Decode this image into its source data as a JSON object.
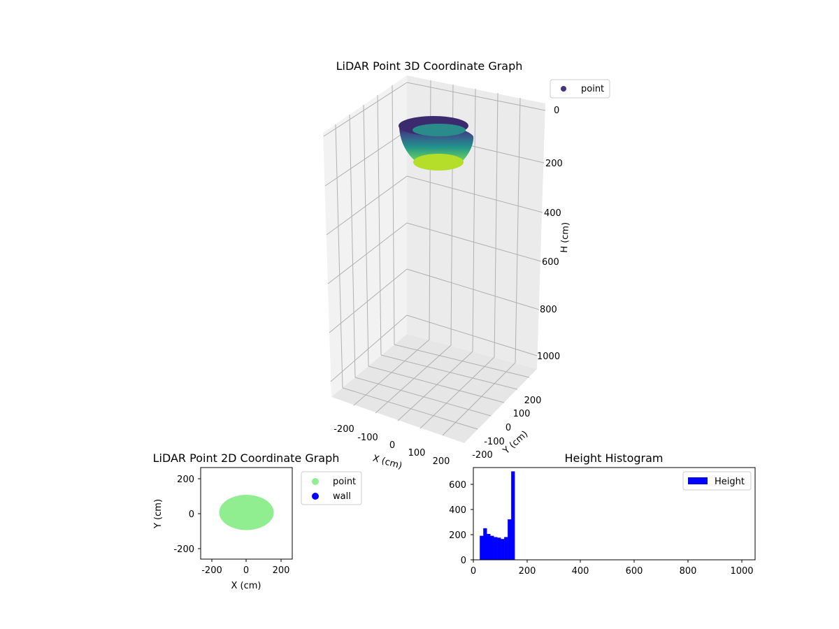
{
  "chart_data": [
    {
      "id": "lidar3d",
      "type": "scatter",
      "title": "LiDAR Point 3D Coordinate Graph",
      "xlabel": "X (cm)",
      "ylabel": "Y (cm)",
      "zlabel": "H (cm)",
      "xticks": [
        "-200",
        "-100",
        "0",
        "100",
        "200"
      ],
      "yticks": [
        "-200",
        "-100",
        "0",
        "100",
        "200"
      ],
      "zticks": [
        "0",
        "200",
        "400",
        "600",
        "800",
        "1000"
      ],
      "xlim": [
        -250,
        250
      ],
      "ylim": [
        -250,
        250
      ],
      "zlim": [
        0,
        1000
      ],
      "zinverted": true,
      "colormap": "viridis",
      "legend": {
        "label": "point",
        "color": "#46337e",
        "position": "top-right"
      },
      "cloud": {
        "rx": 170,
        "ry": 100,
        "h_top": 20,
        "h_bottom": 230
      }
    },
    {
      "id": "lidar2d",
      "type": "scatter",
      "title": "LiDAR Point 2D Coordinate Graph",
      "xlabel": "X (cm)",
      "ylabel": "Y (cm)",
      "xticks": [
        "-200",
        "0",
        "200"
      ],
      "yticks": [
        "200",
        "0",
        "-200"
      ],
      "xlim": [
        -260,
        260
      ],
      "ylim": [
        -260,
        260
      ],
      "series": [
        {
          "name": "point",
          "color": "#90ee90",
          "shape": {
            "cx": 0,
            "cy": 5,
            "rx": 155,
            "ry": 100
          }
        },
        {
          "name": "wall",
          "color": "#0000ff"
        }
      ],
      "legend_position": "outside-right"
    },
    {
      "id": "histogram",
      "type": "bar",
      "title": "Height Histogram",
      "xlabel": "",
      "ylabel": "",
      "xticks": [
        "0",
        "200",
        "400",
        "600",
        "800",
        "1000"
      ],
      "yticks": [
        "0",
        "200",
        "400",
        "600"
      ],
      "xlim": [
        0,
        1050
      ],
      "ylim": [
        0,
        730
      ],
      "series": [
        {
          "name": "Height",
          "color": "#0000ff",
          "bins": [
            {
              "x0": 24,
              "x1": 37,
              "value": 190
            },
            {
              "x0": 37,
              "x1": 50,
              "value": 250
            },
            {
              "x0": 50,
              "x1": 63,
              "value": 205
            },
            {
              "x0": 63,
              "x1": 76,
              "value": 190
            },
            {
              "x0": 76,
              "x1": 89,
              "value": 180
            },
            {
              "x0": 89,
              "x1": 102,
              "value": 175
            },
            {
              "x0": 102,
              "x1": 115,
              "value": 165
            },
            {
              "x0": 115,
              "x1": 128,
              "value": 180
            },
            {
              "x0": 128,
              "x1": 141,
              "value": 320
            },
            {
              "x0": 141,
              "x1": 154,
              "value": 700
            }
          ]
        }
      ],
      "legend": {
        "label": "Height",
        "position": "top-right"
      }
    }
  ]
}
